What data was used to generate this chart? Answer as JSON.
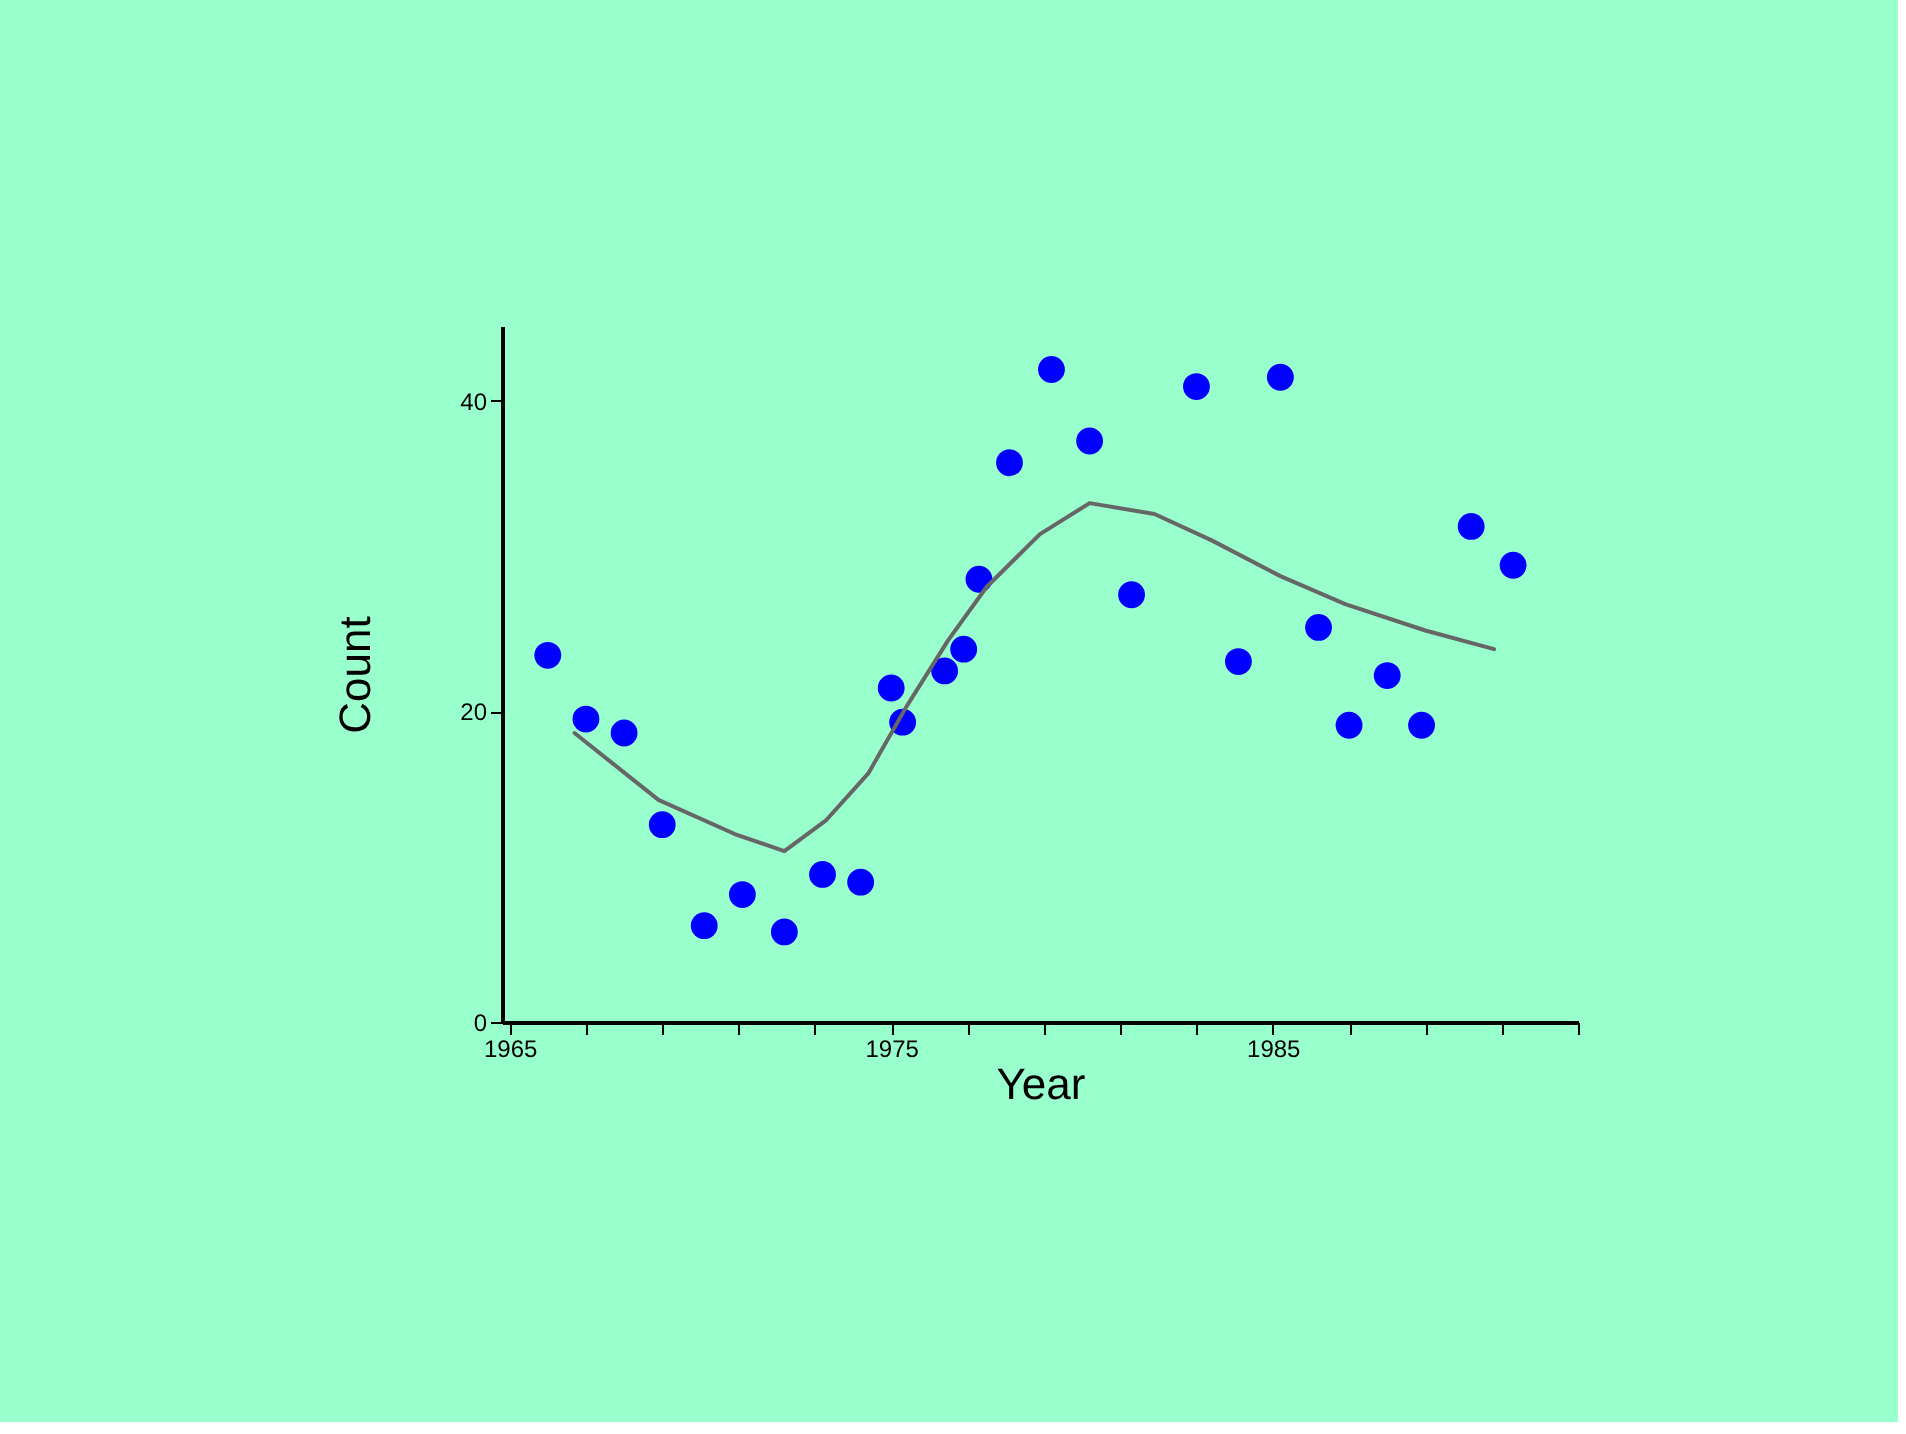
{
  "chart_data": {
    "type": "scatter",
    "xlabel": "Year",
    "ylabel": "Count",
    "xlim": [
      1964.8,
      1993
    ],
    "ylim": [
      0,
      44.8
    ],
    "xticks": [
      1965,
      {
        "value": 1967,
        "label": null
      },
      {
        "value": 1969,
        "label": null
      },
      {
        "value": 1971,
        "label": null
      },
      {
        "value": 1973,
        "label": null
      },
      1975,
      {
        "value": 1977,
        "label": null
      },
      {
        "value": 1979,
        "label": null
      },
      {
        "value": 1981,
        "label": null
      },
      {
        "value": 1983,
        "label": null
      },
      1985,
      {
        "value": 1987,
        "label": null
      },
      {
        "value": 1989,
        "label": null
      },
      {
        "value": 1991,
        "label": null
      },
      {
        "value": 1993,
        "label": null
      }
    ],
    "yticks": [
      0,
      20,
      40
    ],
    "grid": false,
    "series": [
      {
        "color": "#0000ff",
        "marker": "circle",
        "x": [
          1966,
          1967,
          1968,
          1969,
          1970.1,
          1971.1,
          1972.2,
          1973.2,
          1974.2,
          1975,
          1975.3,
          1976.4,
          1976.9,
          1977.3,
          1978.1,
          1979.2,
          1980.2,
          1981.3,
          1983,
          1984.1,
          1985.2,
          1986.2,
          1987,
          1988,
          1988.9,
          1990.2,
          1991.3
        ],
        "values": [
          23.6,
          19.5,
          18.6,
          12.7,
          6.2,
          8.2,
          5.8,
          9.5,
          9.0,
          21.5,
          19.3,
          22.6,
          24.0,
          28.5,
          36.0,
          42.0,
          37.4,
          27.5,
          40.9,
          23.2,
          41.5,
          25.4,
          19.1,
          22.3,
          19.1,
          31.9,
          29.4
        ]
      },
      {
        "type": "line",
        "color": "#666666",
        "line_style": "solid",
        "x": [
          1966.7,
          1968.9,
          1970.9,
          1972.2,
          1973.3,
          1974.4,
          1975.4,
          1976.5,
          1977.5,
          1978.9,
          1980.2,
          1981.9,
          1983.4,
          1985.2,
          1986.9,
          1989,
          1990.8
        ],
        "values": [
          18.6,
          14.3,
          12.1,
          11.0,
          13.0,
          16.0,
          20.3,
          24.6,
          28.0,
          31.4,
          33.4,
          32.7,
          31.0,
          28.7,
          26.9,
          25.2,
          24.0
        ]
      }
    ]
  }
}
